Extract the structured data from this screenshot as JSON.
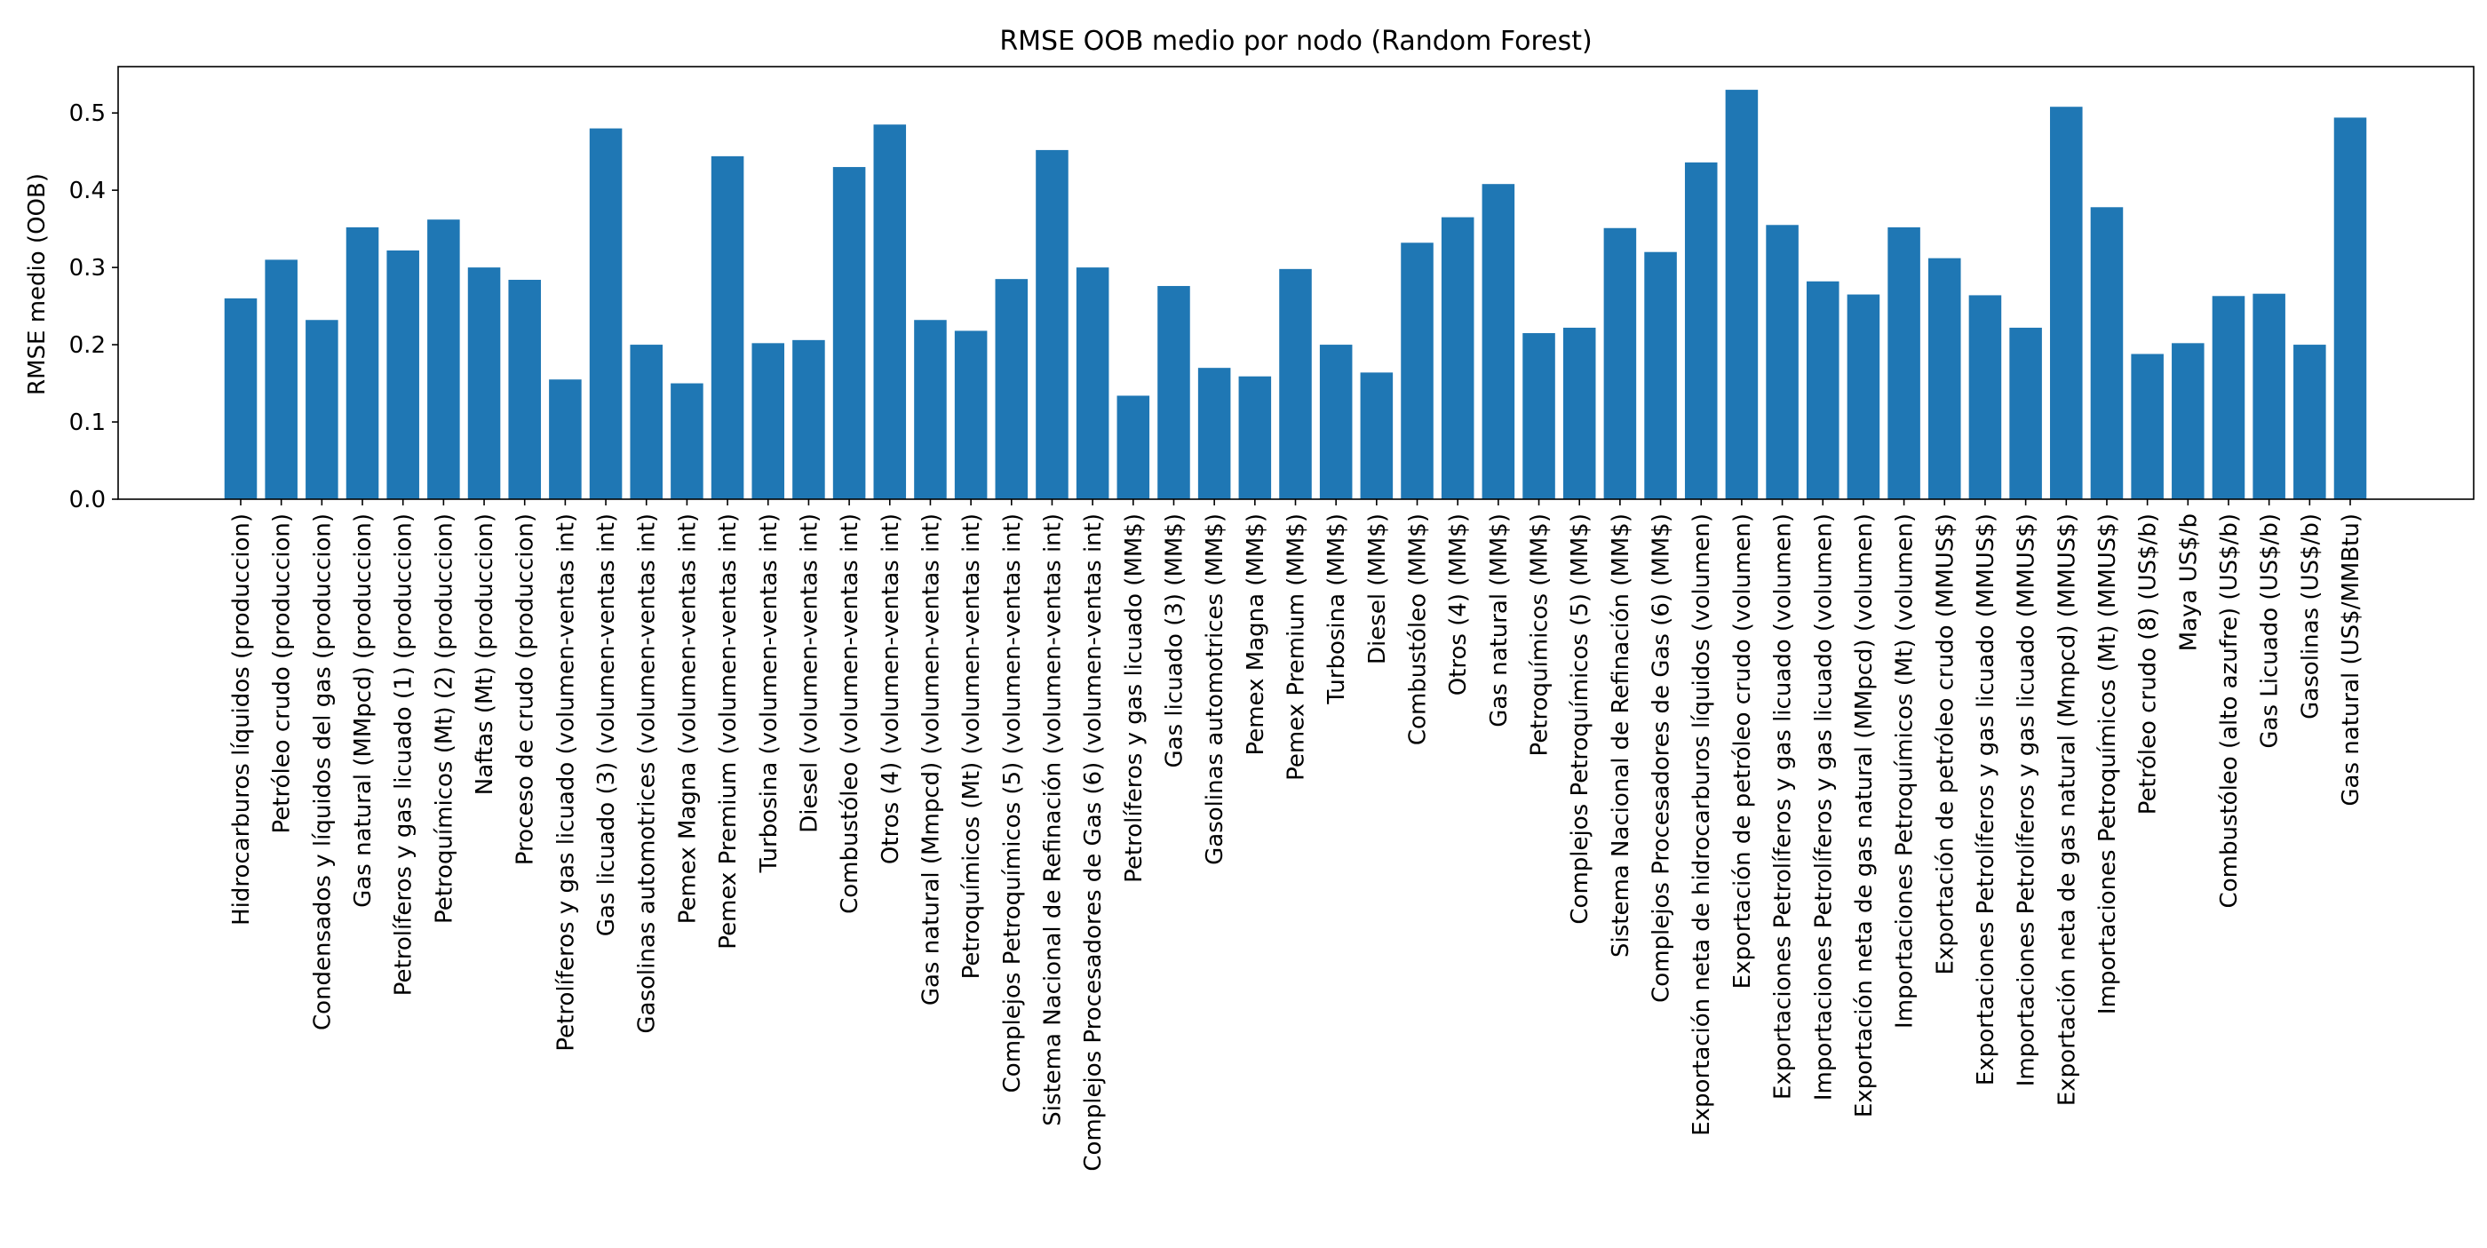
{
  "chart_data": {
    "type": "bar",
    "title": "RMSE OOB medio por nodo (Random Forest)",
    "xlabel": "",
    "ylabel": "RMSE medio (OOB)",
    "ylim": [
      0,
      0.56
    ],
    "yticks": [
      0.0,
      0.1,
      0.2,
      0.3,
      0.4,
      0.5
    ],
    "ytick_labels": [
      "0.0",
      "0.1",
      "0.2",
      "0.3",
      "0.4",
      "0.5"
    ],
    "grid": false,
    "bar_color": "#1f77b4",
    "categories": [
      "Hidrocarburos líquidos (produccion)",
      "Petróleo crudo (produccion)",
      "Condensados y líquidos del gas (produccion)",
      "Gas natural  (MMpcd) (produccion)",
      "Petrolíferos y gas licuado (1) (produccion)",
      "Petroquímicos (Mt) (2) (produccion)",
      "Naftas (Mt) (produccion)",
      "Proceso de crudo (produccion)",
      "Petrolíferos y gas licuado (volumen-ventas int)",
      "Gas licuado (3) (volumen-ventas int)",
      "Gasolinas automotrices (volumen-ventas int)",
      "Pemex Magna (volumen-ventas int)",
      "Pemex Premium (volumen-ventas int)",
      "Turbosina (volumen-ventas int)",
      "Diesel (volumen-ventas int)",
      "Combustóleo (volumen-ventas int)",
      "Otros (4) (volumen-ventas int)",
      "Gas natural (Mmpcd) (volumen-ventas int)",
      "Petroquímicos (Mt) (volumen-ventas int)",
      "Complejos Petroquímicos (5) (volumen-ventas int)",
      "Sistema Nacional de Refinación (volumen-ventas int)",
      "Complejos Procesadores de Gas (6) (volumen-ventas int)",
      "Petrolíferos y gas licuado (MM$)",
      "Gas licuado (3) (MM$)",
      "Gasolinas automotrices (MM$)",
      "Pemex Magna (MM$)",
      "Pemex Premium (MM$)",
      "Turbosina (MM$)",
      "Diesel (MM$)",
      "Combustóleo  (MM$)",
      "Otros (4)  (MM$)",
      "Gas natural  (MM$)",
      "Petroquímicos  (MM$)",
      "Complejos Petroquímicos (5)  (MM$)",
      "Sistema Nacional de Refinación  (MM$)",
      "Complejos Procesadores de Gas (6)  (MM$)",
      "Exportación neta de hidrocarburos líquidos (volumen)",
      "Exportación de petróleo crudo (volumen)",
      "Exportaciones Petrolíferos y gas licuado (volumen)",
      "Importaciones Petrolíferos y gas licuado (volumen)",
      "Exportación neta de gas natural (MMpcd) (volumen)",
      "Importaciones Petroquímicos (Mt) (volumen)",
      "Exportación de petróleo crudo (MMUS$)",
      "Exportaciones Petrolíferos y gas licuado (MMUS$)",
      "Importaciones Petrolíferos y gas licuado (MMUS$)",
      "Exportación neta de gas natural (Mmpcd) (MMUS$)",
      "Importaciones Petroquímicos (Mt) (MMUS$)",
      "Petróleo crudo (8) (US$/b)",
      "Maya US$/b",
      "Combustóleo (alto azufre) (US$/b)",
      "Gas Licuado (US$/b)",
      "Gasolinas (US$/b)",
      "Gas natural (US$/MMBtu)"
    ],
    "values": [
      0.26,
      0.31,
      0.232,
      0.352,
      0.322,
      0.362,
      0.3,
      0.284,
      0.155,
      0.48,
      0.2,
      0.15,
      0.444,
      0.202,
      0.206,
      0.43,
      0.485,
      0.232,
      0.218,
      0.285,
      0.452,
      0.3,
      0.134,
      0.276,
      0.17,
      0.159,
      0.298,
      0.2,
      0.164,
      0.332,
      0.365,
      0.408,
      0.215,
      0.222,
      0.351,
      0.32,
      0.436,
      0.53,
      0.355,
      0.282,
      0.265,
      0.352,
      0.312,
      0.264,
      0.222,
      0.508,
      0.378,
      0.188,
      0.202,
      0.263,
      0.266,
      0.2,
      0.494
    ]
  }
}
